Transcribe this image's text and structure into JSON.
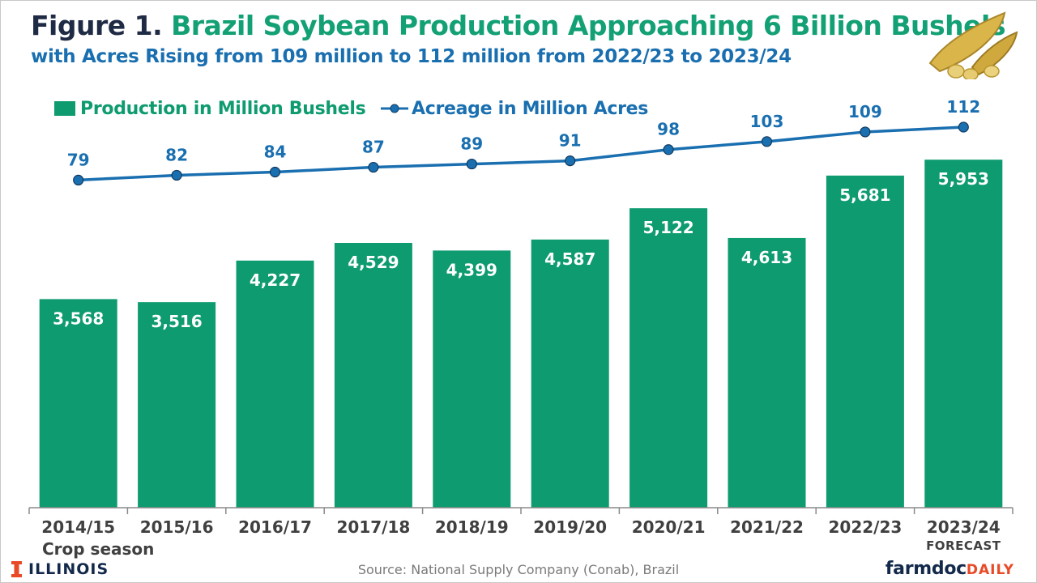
{
  "header": {
    "title_lead": "Figure 1.",
    "title_main": "Brazil Soybean Production Approaching 6 Billion Bushels",
    "subtitle": "with Acres Rising from 109 million to 112 million from 2022/23 to 2023/24"
  },
  "legend": {
    "production": "Production in Million Bushels",
    "acreage": "Acreage in Million Acres"
  },
  "axis": {
    "x_label": "Crop season",
    "forecast_note": "FORECAST"
  },
  "footer": {
    "source": "Source: National Supply Company (Conab), Brazil",
    "illinois": "ILLINOIS",
    "farmdoc": "farmdoc",
    "daily": "DAILY"
  },
  "colors": {
    "bar": "#0e9b6f",
    "line": "#1a6fb0",
    "title_lead": "#1f2a44",
    "title_main": "#12a074",
    "subtitle": "#1a6fb0"
  },
  "chart_data": {
    "type": "bar",
    "title": "Brazil Soybean Production Approaching 6 Billion Bushels",
    "xlabel": "Crop season",
    "categories": [
      "2014/15",
      "2015/16",
      "2016/17",
      "2017/18",
      "2018/19",
      "2019/20",
      "2020/21",
      "2021/22",
      "2022/23",
      "2023/24"
    ],
    "value_labels": {
      "production": [
        "3,568",
        "3,516",
        "4,227",
        "4,529",
        "4,399",
        "4,587",
        "5,122",
        "4,613",
        "5,681",
        "5,953"
      ],
      "acreage": [
        "79",
        "82",
        "84",
        "87",
        "89",
        "91",
        "98",
        "103",
        "109",
        "112"
      ]
    },
    "series": [
      {
        "name": "Production in Million Bushels",
        "type": "bar",
        "values": [
          3568,
          3516,
          4227,
          4529,
          4399,
          4587,
          5122,
          4613,
          5681,
          5953
        ]
      },
      {
        "name": "Acreage in Million Acres",
        "type": "line",
        "values": [
          79,
          82,
          84,
          87,
          89,
          91,
          98,
          103,
          109,
          112
        ]
      }
    ],
    "ylim_production": [
      0,
      8000
    ],
    "ylim_acreage": [
      10,
      120
    ],
    "grid": false,
    "legend_position": "top-left"
  }
}
